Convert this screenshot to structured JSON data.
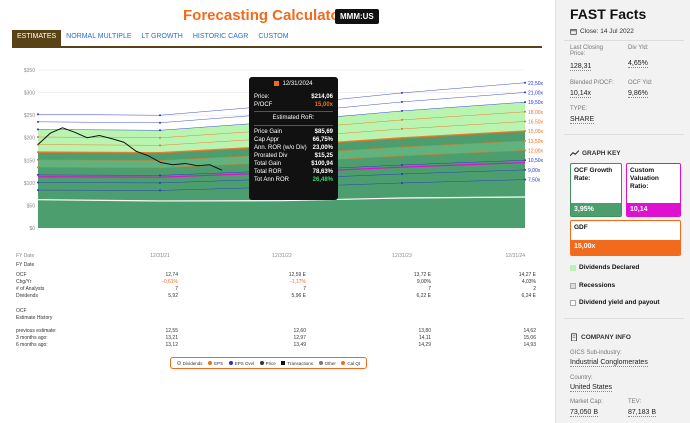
{
  "header": {
    "title": "Forecasting Calculators",
    "ticker": "MMM:US"
  },
  "tabs": [
    {
      "label": "ESTIMATES",
      "active": true
    },
    {
      "label": "NORMAL MULTIPLE",
      "active": false
    },
    {
      "label": "LT GROWTH",
      "active": false
    },
    {
      "label": "HISTORIC CAGR",
      "active": false
    },
    {
      "label": "CUSTOM",
      "active": false
    }
  ],
  "chart_data": {
    "type": "area",
    "y_axis_ticks": [
      "$350",
      "$300",
      "$250",
      "$200",
      "$150",
      "$100",
      "$50",
      "$0"
    ],
    "ylim": [
      0,
      350
    ],
    "x_axis_labels": [
      "FY Date",
      "12/31/21",
      "12/31/22",
      "12/31/23",
      "12/31/24"
    ],
    "right_multiple_labels": [
      {
        "label": "22,50x",
        "color": "#2233cc"
      },
      {
        "label": "21,00x",
        "color": "#2233cc"
      },
      {
        "label": "19,50x",
        "color": "#2233cc"
      },
      {
        "label": "18,00x",
        "color": "#f26b1d"
      },
      {
        "label": "16,50x",
        "color": "#f26b1d"
      },
      {
        "label": "15,00x",
        "color": "#f26b1d"
      },
      {
        "label": "13,50x",
        "color": "#f26b1d"
      },
      {
        "label": "12,00x",
        "color": "#f26b1d"
      },
      {
        "label": "10,50x",
        "color": "#2233cc"
      },
      {
        "label": "9,00x",
        "color": "#2233cc"
      },
      {
        "label": "7,50x",
        "color": "#2233cc"
      }
    ],
    "fair_value_line_15x": [
      192,
      200,
      206,
      213
    ],
    "price_history": [
      185,
      210,
      222,
      212,
      200,
      205,
      198,
      190,
      170,
      160,
      145,
      140,
      143,
      138,
      140,
      128
    ],
    "colors": {
      "green_fill": "#4d9e6e",
      "light_green": "#b9f5b0",
      "orange": "#f26b1d",
      "blue": "#2233cc",
      "magenta": "#e010d0"
    }
  },
  "tooltip": {
    "date": "12/31/2024",
    "rows_top": [
      {
        "label": "Price:",
        "value": "$214,06"
      },
      {
        "label": "P/OCF",
        "value": "15,00x",
        "color": "#f26b1d"
      }
    ],
    "estimated_header": "Estimated RoR:",
    "rows": [
      {
        "label": "Price Gain",
        "value": "$85,69"
      },
      {
        "label": "Cap Appr",
        "value": "66,75%"
      },
      {
        "label": "Ann. ROR (w/o Div)",
        "value": "23,00%"
      },
      {
        "label": "Prorated Div",
        "value": "$15,25"
      },
      {
        "label": "Total Gain",
        "value": "$100,94"
      },
      {
        "label": "Total ROR",
        "value": "78,63%"
      },
      {
        "label": "Tot Ann ROR",
        "value": "26,48%",
        "color": "#3bd16f"
      }
    ]
  },
  "table": {
    "fy_label": "FY Date",
    "rows": [
      {
        "label": "OCF",
        "values": [
          "12,74",
          "12,59 E",
          "13,72 E",
          "14,27 E"
        ]
      },
      {
        "label": "Chg/Yr",
        "values": [
          "-0,61%",
          "-1,17%",
          "9,00%",
          "4,03%"
        ],
        "neg": [
          true,
          true,
          false,
          false
        ]
      },
      {
        "label": "# of Analysts",
        "values": [
          "7",
          "7",
          "7",
          "2"
        ]
      },
      {
        "label": "Dividends",
        "values": [
          "5,92",
          "5,96 E",
          "6,22 E",
          "6,24 E"
        ]
      }
    ],
    "history_title_1": "OCF",
    "history_title_2": "Estimate History",
    "history": [
      {
        "label": "previous estimate:",
        "values": [
          "12,55",
          "12,60",
          "13,80",
          "14,62"
        ]
      },
      {
        "label": "3 months ago:",
        "values": [
          "13,21",
          "12,97",
          "14,11",
          "15,06"
        ]
      },
      {
        "label": "6 months ago:",
        "values": [
          "13,12",
          "13,49",
          "14,29",
          "14,93"
        ]
      }
    ]
  },
  "legend": [
    {
      "label": "Dividends",
      "color": "#ffffff"
    },
    {
      "label": "EPS",
      "color": "#f26b1d"
    },
    {
      "label": "EPS Ovvl",
      "color": "#2233cc"
    },
    {
      "label": "Price",
      "color": "#333333"
    },
    {
      "label": "Transactions",
      "color": "#111111"
    },
    {
      "label": "Other",
      "color": "#777777"
    },
    {
      "label": "Cal Qt",
      "color": "#f26b1d"
    }
  ],
  "sidebar": {
    "title": "FAST Facts",
    "close": "Close: 14 Jul 2022",
    "facts": [
      {
        "label": "Last Closing Price:",
        "value": "128,31"
      },
      {
        "label": "Div Yld:",
        "value": "4,65%"
      },
      {
        "label": "Blended P/OCF:",
        "value": "10,14x"
      },
      {
        "label": "OCF Yld:",
        "value": "9,86%"
      },
      {
        "label": "TYPE:",
        "value": "SHARE"
      }
    ],
    "graph_key_title": "GRAPH KEY",
    "graph_key": {
      "ocf_growth_label": "OCF Growth Rate:",
      "ocf_growth_value": "3,95%",
      "custom_label": "Custom Valuation Ratio:",
      "custom_value": "10,14",
      "gdf_label": "GDF",
      "gdf_value": "15,00x"
    },
    "key_items": [
      {
        "label": "Dividends Declared"
      },
      {
        "label": "Recessions"
      },
      {
        "label": "Dividend yield and payout"
      }
    ],
    "company_info_title": "COMPANY INFO",
    "company": [
      {
        "label": "GICS Sub-industry:",
        "value": "Industrial Conglomerates"
      },
      {
        "label": "Country:",
        "value": "United States"
      },
      {
        "label": "Market Cap:",
        "value": "73,050 B"
      },
      {
        "label": "TEV:",
        "value": "87,183 B"
      }
    ]
  }
}
